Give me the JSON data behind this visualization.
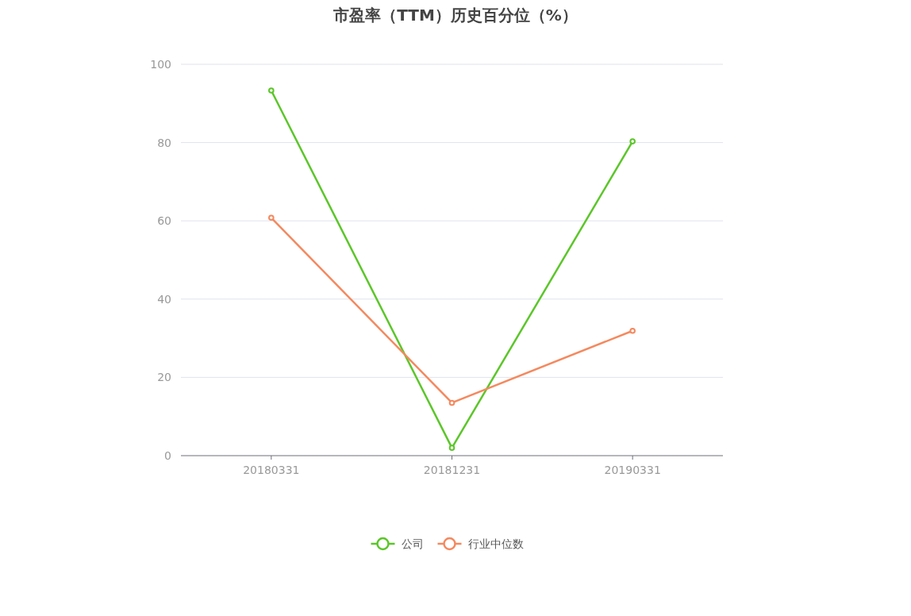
{
  "chart_data": {
    "type": "line",
    "title": "市盈率（TTM）历史百分位（%）",
    "categories": [
      "20180331",
      "20181231",
      "20190331"
    ],
    "series": [
      {
        "name": "公司",
        "color": "#5cc62a",
        "values": [
          93.3,
          2.0,
          80.3
        ]
      },
      {
        "name": "行业中位数",
        "color": "#f4895f",
        "values": [
          60.8,
          13.5,
          31.9
        ]
      }
    ],
    "ylim": [
      0,
      100
    ],
    "yticks": [
      0,
      20,
      40,
      60,
      80,
      100
    ],
    "grid": "y",
    "legend": "bottom",
    "marker": "circle",
    "line_style": "solid"
  }
}
